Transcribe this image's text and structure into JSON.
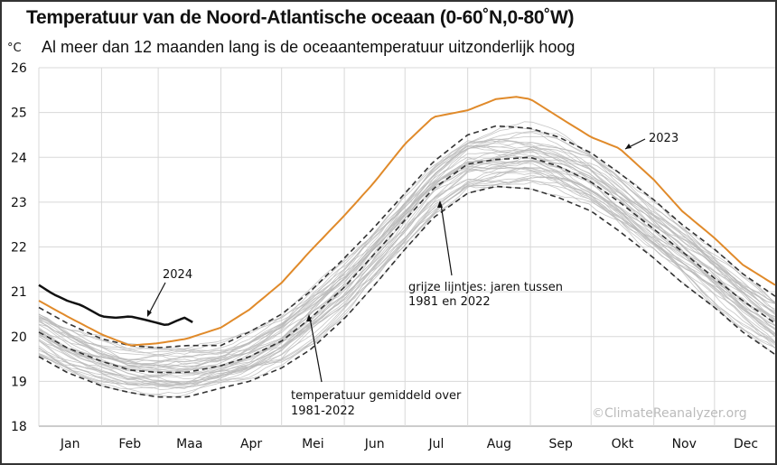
{
  "chart_data": {
    "type": "line",
    "title": "Temperatuur van de Noord-Atlantische oceaan (0-60˚N,0-80˚W)",
    "subtitle": "Al meer dan 12 maanden lang is de oceaantemperatuur uitzonderlijk hoog",
    "ylabel": "°C",
    "ylim": [
      18,
      26
    ],
    "yticks": [
      "18",
      "19",
      "20",
      "21",
      "22",
      "23",
      "24",
      "25",
      "26"
    ],
    "xticks": [
      "Jan",
      "Feb",
      "Maa",
      "Apr",
      "Mei",
      "Jun",
      "Jul",
      "Aug",
      "Sep",
      "Okt",
      "Nov",
      "Dec"
    ],
    "grid": true,
    "series": [
      {
        "name": "2023",
        "color": "#e08a2a",
        "style": "solid",
        "x": [
          "01-01",
          "01-15",
          "02-01",
          "02-15",
          "03-01",
          "03-15",
          "04-01",
          "04-15",
          "05-01",
          "05-15",
          "06-01",
          "06-15",
          "07-01",
          "07-15",
          "08-01",
          "08-15",
          "08-25",
          "09-01",
          "09-15",
          "10-01",
          "10-15",
          "11-01",
          "11-15",
          "12-01",
          "12-15",
          "12-31"
        ],
        "y": [
          20.8,
          20.45,
          20.05,
          19.8,
          19.85,
          19.95,
          20.2,
          20.6,
          21.2,
          21.9,
          22.7,
          23.4,
          24.3,
          24.9,
          25.05,
          25.3,
          25.35,
          25.3,
          24.9,
          24.45,
          24.2,
          23.5,
          22.8,
          22.2,
          21.6,
          21.15
        ]
      },
      {
        "name": "2024",
        "color": "#111111",
        "style": "solid",
        "x": [
          "01-01",
          "01-08",
          "01-15",
          "01-22",
          "02-01",
          "02-08",
          "02-15",
          "02-22",
          "03-01",
          "03-05",
          "03-10",
          "03-14",
          "03-18"
        ],
        "y": [
          21.15,
          20.95,
          20.8,
          20.7,
          20.45,
          20.42,
          20.45,
          20.38,
          20.3,
          20.25,
          20.35,
          20.42,
          20.32
        ]
      },
      {
        "name": "temperatuur gemiddeld over 1981-2022",
        "color": "#333333",
        "style": "dashed",
        "x": [
          "01-01",
          "01-15",
          "02-01",
          "02-15",
          "03-01",
          "03-15",
          "04-01",
          "04-15",
          "05-01",
          "05-15",
          "06-01",
          "06-15",
          "07-01",
          "07-15",
          "08-01",
          "08-15",
          "09-01",
          "09-15",
          "10-01",
          "10-15",
          "11-01",
          "11-15",
          "12-01",
          "12-15",
          "12-31"
        ],
        "y": [
          20.1,
          19.75,
          19.45,
          19.25,
          19.2,
          19.2,
          19.35,
          19.55,
          19.9,
          20.4,
          21.1,
          21.8,
          22.6,
          23.3,
          23.85,
          23.95,
          24.0,
          23.8,
          23.45,
          23.0,
          22.4,
          21.9,
          21.3,
          20.8,
          20.3
        ]
      },
      {
        "name": "",
        "color": "#333333",
        "style": "dashed",
        "x": [
          "01-01",
          "01-15",
          "02-01",
          "02-15",
          "03-01",
          "03-15",
          "04-01",
          "04-15",
          "05-01",
          "05-15",
          "06-01",
          "06-15",
          "07-01",
          "07-15",
          "08-01",
          "08-15",
          "09-01",
          "09-15",
          "10-01",
          "10-15",
          "11-01",
          "11-15",
          "12-01",
          "12-15",
          "12-31"
        ],
        "y": [
          20.65,
          20.3,
          19.95,
          19.8,
          19.75,
          19.8,
          19.8,
          20.1,
          20.5,
          21.0,
          21.75,
          22.4,
          23.2,
          23.9,
          24.5,
          24.7,
          24.65,
          24.45,
          24.1,
          23.65,
          23.05,
          22.5,
          21.95,
          21.4,
          20.9
        ]
      },
      {
        "name": "",
        "color": "#333333",
        "style": "dashed",
        "x": [
          "01-01",
          "01-15",
          "02-01",
          "02-15",
          "03-01",
          "03-15",
          "04-01",
          "04-15",
          "05-01",
          "05-15",
          "06-01",
          "06-15",
          "07-01",
          "07-15",
          "08-01",
          "08-15",
          "09-01",
          "09-15",
          "10-01",
          "10-15",
          "11-01",
          "11-15",
          "12-01",
          "12-15",
          "12-31"
        ],
        "y": [
          19.55,
          19.2,
          18.9,
          18.75,
          18.65,
          18.65,
          18.85,
          19.0,
          19.3,
          19.7,
          20.4,
          21.1,
          21.95,
          22.65,
          23.2,
          23.35,
          23.3,
          23.1,
          22.8,
          22.35,
          21.75,
          21.2,
          20.65,
          20.1,
          19.6
        ]
      }
    ],
    "annotations": [
      {
        "text": "2023"
      },
      {
        "text": "2024"
      },
      {
        "lines": [
          "grijze lijntjes: jaren tussen",
          "1981 en 2022"
        ]
      },
      {
        "lines": [
          "temperatuur gemiddeld over",
          "1981-2022"
        ]
      }
    ],
    "background_lines_label": "grijze lijntjes: jaren tussen 1981 en 2022",
    "watermark": "©ClimateReanalyzer.org"
  }
}
